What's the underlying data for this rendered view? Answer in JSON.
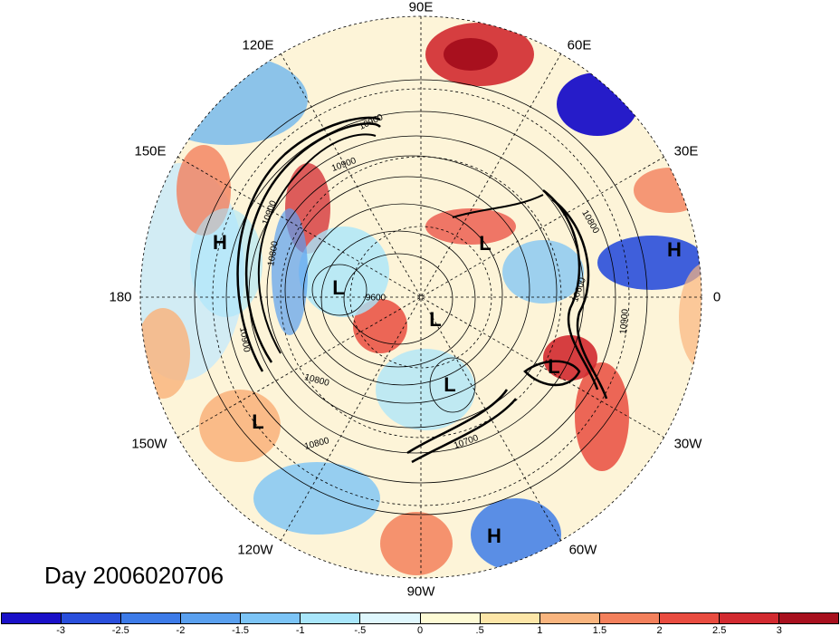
{
  "title": "Day 2006020706",
  "longitude_labels": {
    "lon_90e": "90E",
    "lon_120e": "120E",
    "lon_60e": "60E",
    "lon_150e": "150E",
    "lon_30e": "30E",
    "lon_180": "180",
    "lon_0": "0",
    "lon_150w": "150W",
    "lon_30w": "30W",
    "lon_120w": "120W",
    "lon_60w": "60W",
    "lon_90w": "90W"
  },
  "pressure_systems": [
    {
      "label": "H",
      "name": "high-label"
    },
    {
      "label": "H",
      "name": "high-label"
    },
    {
      "label": "H",
      "name": "high-label"
    },
    {
      "label": "L",
      "name": "low-label"
    },
    {
      "label": "L",
      "name": "low-label"
    },
    {
      "label": "L",
      "name": "low-label"
    },
    {
      "label": "L",
      "name": "low-label"
    },
    {
      "label": "L",
      "name": "low-label"
    },
    {
      "label": "L",
      "name": "low-label"
    }
  ],
  "contour_labels": [
    "10900",
    "10800",
    "10900",
    "10900",
    "9600",
    "10800",
    "10800",
    "10700",
    "10900",
    "10800",
    "10900",
    "10600"
  ],
  "colorbar": {
    "colors": [
      "#1a10c8",
      "#2a4fdc",
      "#3d7be8",
      "#5aa0ef",
      "#7cc4f6",
      "#a9e6fb",
      "#dff7fd",
      "#fefbd5",
      "#fde6a8",
      "#f9b57f",
      "#f3805c",
      "#e94c40",
      "#d22a30",
      "#a8101e"
    ],
    "tick_labels": [
      "-3",
      "-2.5",
      "-2",
      "-1.5",
      "-1",
      "-.5",
      "0",
      ".5",
      "1",
      "1.5",
      "2",
      "2.5",
      "3"
    ]
  }
}
